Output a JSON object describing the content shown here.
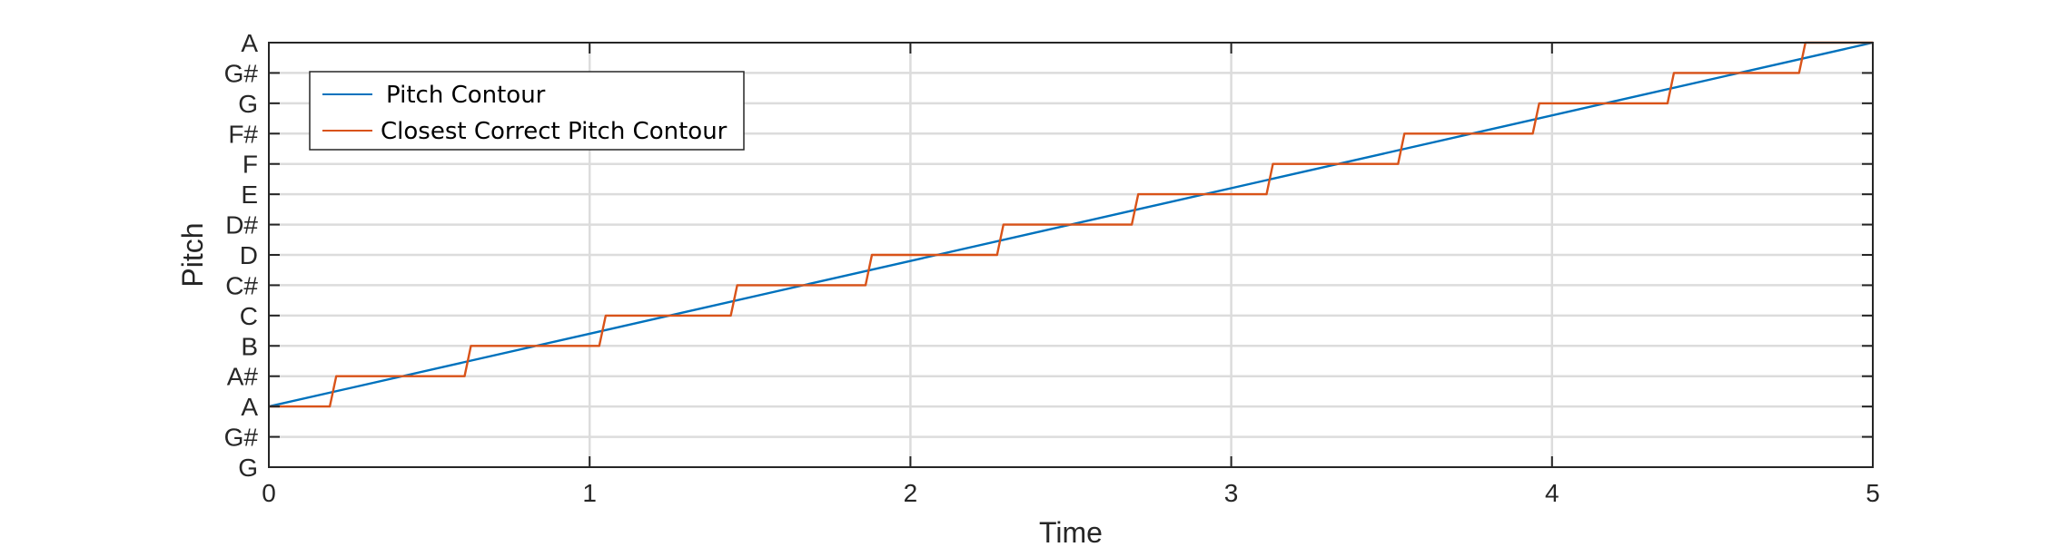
{
  "chart_data": {
    "type": "line",
    "title": "",
    "xlabel": "Time",
    "ylabel": "Pitch",
    "xlim": [
      0,
      5
    ],
    "ylim": [
      -2,
      12
    ],
    "grid": true,
    "legend_location": "top-left",
    "x_ticks": [
      0,
      1,
      2,
      3,
      4,
      5
    ],
    "x_tick_labels": [
      "0",
      "1",
      "2",
      "3",
      "4",
      "5"
    ],
    "y_ticks": [
      -2,
      -1,
      0,
      1,
      2,
      3,
      4,
      5,
      6,
      7,
      8,
      9,
      10,
      11,
      12
    ],
    "y_tick_labels": [
      "G",
      "G#",
      "A",
      "A#",
      "B",
      "C",
      "C#",
      "D",
      "D#",
      "E",
      "F",
      "F#",
      "G",
      "G#",
      "A"
    ],
    "series": [
      {
        "name": "Pitch Contour",
        "color": "#0072BD",
        "kind": "linear",
        "x": [
          0,
          5
        ],
        "y": [
          0,
          12
        ]
      },
      {
        "name": "Closest Correct Pitch Contour",
        "color": "#D95319",
        "kind": "step",
        "x": [
          0,
          0.19,
          0.21,
          0.61,
          0.63,
          1.03,
          1.05,
          1.44,
          1.46,
          1.86,
          1.88,
          2.27,
          2.29,
          2.69,
          2.71,
          3.11,
          3.13,
          3.52,
          3.54,
          3.94,
          3.96,
          4.36,
          4.38,
          4.77,
          4.79,
          5
        ],
        "y": [
          0,
          0,
          1,
          1,
          2,
          2,
          3,
          3,
          4,
          4,
          5,
          5,
          6,
          6,
          7,
          7,
          8,
          8,
          9,
          9,
          10,
          10,
          11,
          11,
          12,
          12
        ]
      }
    ]
  }
}
